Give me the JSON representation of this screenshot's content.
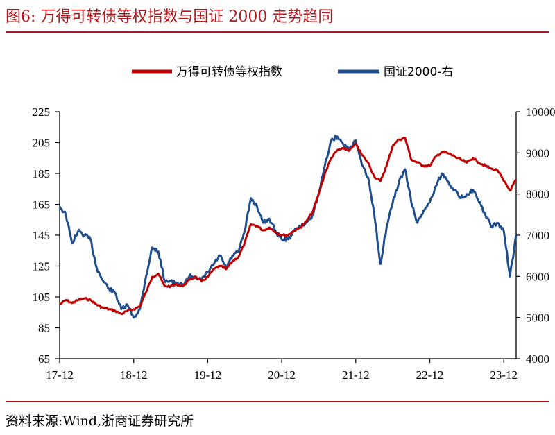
{
  "figure": {
    "title": "图6:   万得可转债等权指数与国证 2000 走势趋同",
    "source": "资料来源:Wind,浙商证券研究所",
    "accent_color": "#b4161b"
  },
  "chart_data": {
    "type": "line",
    "title": "",
    "xlabel": "",
    "ylabel": "",
    "x_ticks": [
      "17-12",
      "18-12",
      "19-12",
      "20-12",
      "21-12",
      "22-12",
      "23-12"
    ],
    "x_range": [
      "2017-12",
      "2024-02"
    ],
    "legend_position": "top-center",
    "grid": false,
    "y_left": {
      "range": [
        65,
        225
      ],
      "ticks": [
        65,
        85,
        105,
        125,
        145,
        165,
        185,
        205,
        225
      ]
    },
    "y_right": {
      "range": [
        4000,
        10000
      ],
      "ticks": [
        4000,
        5000,
        6000,
        7000,
        8000,
        9000,
        10000
      ],
      "tick_labels": [
        "4000",
        "5000",
        "6000",
        "7000",
        "8000",
        "9000",
        "10000"
      ]
    },
    "series": [
      {
        "name": "万得可转债等权指数",
        "axis": "left",
        "color": "#c00000",
        "points": [
          [
            "2017-12",
            100
          ],
          [
            "2018-01",
            103
          ],
          [
            "2018-02",
            101
          ],
          [
            "2018-03",
            103
          ],
          [
            "2018-04",
            104
          ],
          [
            "2018-05",
            103
          ],
          [
            "2018-06",
            100
          ],
          [
            "2018-07",
            98
          ],
          [
            "2018-08",
            97
          ],
          [
            "2018-09",
            96
          ],
          [
            "2018-10",
            94
          ],
          [
            "2018-11",
            96
          ],
          [
            "2018-12",
            97
          ],
          [
            "2019-01",
            99
          ],
          [
            "2019-02",
            108
          ],
          [
            "2019-03",
            118
          ],
          [
            "2019-04",
            120
          ],
          [
            "2019-05",
            112
          ],
          [
            "2019-06",
            112
          ],
          [
            "2019-07",
            113
          ],
          [
            "2019-08",
            112
          ],
          [
            "2019-09",
            116
          ],
          [
            "2019-10",
            118
          ],
          [
            "2019-11",
            115
          ],
          [
            "2019-12",
            118
          ],
          [
            "2020-01",
            123
          ],
          [
            "2020-02",
            125
          ],
          [
            "2020-03",
            123
          ],
          [
            "2020-04",
            128
          ],
          [
            "2020-05",
            131
          ],
          [
            "2020-06",
            140
          ],
          [
            "2020-07",
            152
          ],
          [
            "2020-08",
            151
          ],
          [
            "2020-09",
            148
          ],
          [
            "2020-10",
            150
          ],
          [
            "2020-11",
            147
          ],
          [
            "2020-12",
            145
          ],
          [
            "2021-01",
            145
          ],
          [
            "2021-02",
            148
          ],
          [
            "2021-03",
            150
          ],
          [
            "2021-04",
            154
          ],
          [
            "2021-05",
            160
          ],
          [
            "2021-06",
            172
          ],
          [
            "2021-07",
            185
          ],
          [
            "2021-08",
            195
          ],
          [
            "2021-09",
            200
          ],
          [
            "2021-10",
            201
          ],
          [
            "2021-11",
            200
          ],
          [
            "2021-12",
            204
          ],
          [
            "2022-01",
            197
          ],
          [
            "2022-02",
            192
          ],
          [
            "2022-03",
            183
          ],
          [
            "2022-04",
            180
          ],
          [
            "2022-05",
            190
          ],
          [
            "2022-06",
            203
          ],
          [
            "2022-07",
            207
          ],
          [
            "2022-08",
            208
          ],
          [
            "2022-09",
            194
          ],
          [
            "2022-10",
            192
          ],
          [
            "2022-11",
            190
          ],
          [
            "2022-12",
            190
          ],
          [
            "2023-01",
            196
          ],
          [
            "2023-02",
            199
          ],
          [
            "2023-03",
            198
          ],
          [
            "2023-04",
            196
          ],
          [
            "2023-05",
            194
          ],
          [
            "2023-06",
            192
          ],
          [
            "2023-07",
            195
          ],
          [
            "2023-08",
            192
          ],
          [
            "2023-09",
            190
          ],
          [
            "2023-10",
            188
          ],
          [
            "2023-11",
            187
          ],
          [
            "2023-12",
            180
          ],
          [
            "2024-01",
            174
          ],
          [
            "2024-02",
            181
          ]
        ]
      },
      {
        "name": "国证2000-右",
        "axis": "right",
        "color": "#1f4e8c",
        "points": [
          [
            "2017-12",
            7700
          ],
          [
            "2018-01",
            7500
          ],
          [
            "2018-02",
            6800
          ],
          [
            "2018-03",
            7100
          ],
          [
            "2018-04",
            7000
          ],
          [
            "2018-05",
            6900
          ],
          [
            "2018-06",
            6200
          ],
          [
            "2018-07",
            5900
          ],
          [
            "2018-08",
            5700
          ],
          [
            "2018-09",
            5600
          ],
          [
            "2018-10",
            5200
          ],
          [
            "2018-11",
            5300
          ],
          [
            "2018-12",
            5000
          ],
          [
            "2019-01",
            5200
          ],
          [
            "2019-02",
            6000
          ],
          [
            "2019-03",
            6700
          ],
          [
            "2019-04",
            6600
          ],
          [
            "2019-05",
            5900
          ],
          [
            "2019-06",
            5900
          ],
          [
            "2019-07",
            5800
          ],
          [
            "2019-08",
            5800
          ],
          [
            "2019-09",
            6000
          ],
          [
            "2019-10",
            6000
          ],
          [
            "2019-11",
            5900
          ],
          [
            "2019-12",
            6100
          ],
          [
            "2020-01",
            6300
          ],
          [
            "2020-02",
            6500
          ],
          [
            "2020-03",
            6200
          ],
          [
            "2020-04",
            6500
          ],
          [
            "2020-05",
            6600
          ],
          [
            "2020-06",
            7100
          ],
          [
            "2020-07",
            7900
          ],
          [
            "2020-08",
            7700
          ],
          [
            "2020-09",
            7300
          ],
          [
            "2020-10",
            7400
          ],
          [
            "2020-11",
            7100
          ],
          [
            "2020-12",
            6900
          ],
          [
            "2021-01",
            6900
          ],
          [
            "2021-02",
            7100
          ],
          [
            "2021-03",
            7200
          ],
          [
            "2021-04",
            7300
          ],
          [
            "2021-05",
            7500
          ],
          [
            "2021-06",
            8000
          ],
          [
            "2021-07",
            8700
          ],
          [
            "2021-08",
            9300
          ],
          [
            "2021-09",
            9400
          ],
          [
            "2021-10",
            9200
          ],
          [
            "2021-11",
            9100
          ],
          [
            "2021-12",
            9300
          ],
          [
            "2022-01",
            8700
          ],
          [
            "2022-02",
            8400
          ],
          [
            "2022-03",
            7500
          ],
          [
            "2022-04",
            6300
          ],
          [
            "2022-05",
            7200
          ],
          [
            "2022-06",
            7800
          ],
          [
            "2022-07",
            8300
          ],
          [
            "2022-08",
            8600
          ],
          [
            "2022-09",
            7800
          ],
          [
            "2022-10",
            7300
          ],
          [
            "2022-11",
            7600
          ],
          [
            "2022-12",
            7800
          ],
          [
            "2023-01",
            8200
          ],
          [
            "2023-02",
            8500
          ],
          [
            "2023-03",
            8300
          ],
          [
            "2023-04",
            8100
          ],
          [
            "2023-05",
            7900
          ],
          [
            "2023-06",
            8000
          ],
          [
            "2023-07",
            8100
          ],
          [
            "2023-08",
            7800
          ],
          [
            "2023-09",
            7500
          ],
          [
            "2023-10",
            7200
          ],
          [
            "2023-11",
            7300
          ],
          [
            "2023-12",
            7100
          ],
          [
            "2024-01",
            6000
          ],
          [
            "2024-02",
            7000
          ]
        ]
      }
    ]
  }
}
